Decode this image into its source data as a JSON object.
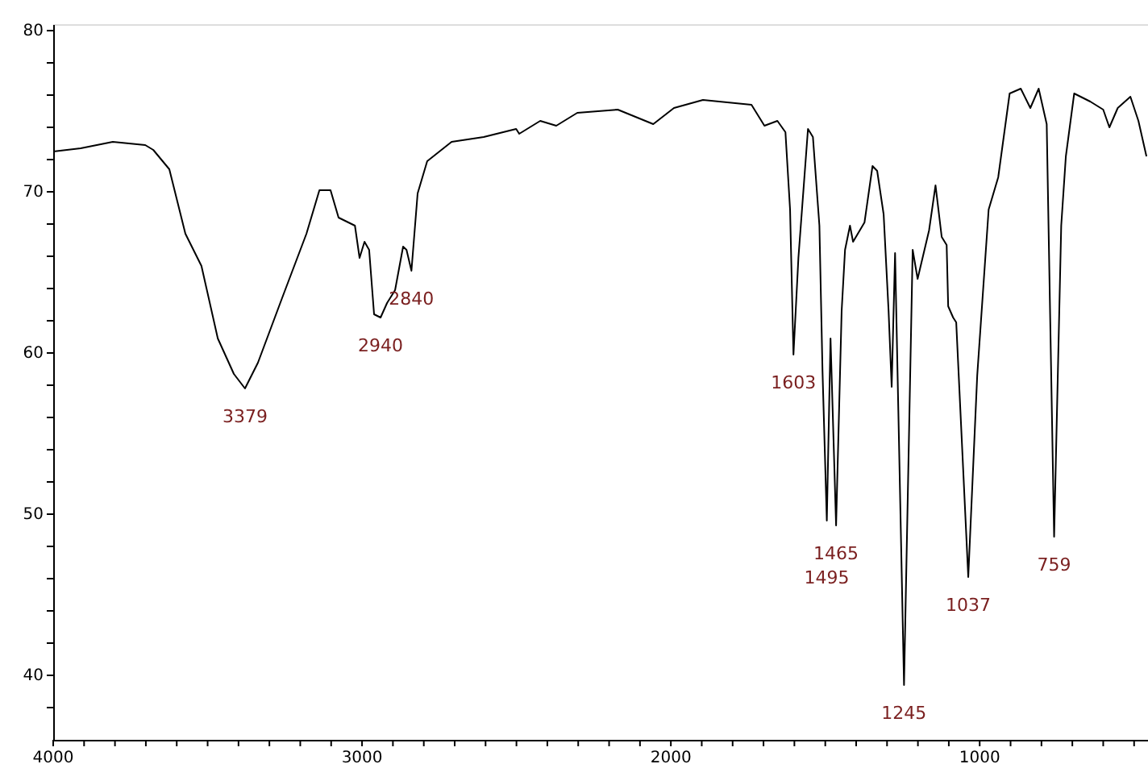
{
  "chart_data": {
    "type": "line",
    "x": [
      4000,
      3911,
      3807,
      3702,
      3676,
      3624,
      3572,
      3520,
      3467,
      3415,
      3379,
      3337,
      3259,
      3180,
      3138,
      3102,
      3076,
      3023,
      3008,
      2992,
      2977,
      2961,
      2940,
      2919,
      2893,
      2867,
      2856,
      2840,
      2820,
      2789,
      2710,
      2606,
      2501,
      2491,
      2423,
      2371,
      2303,
      2172,
      2057,
      1990,
      1896,
      1739,
      1697,
      1655,
      1629,
      1614,
      1603,
      1587,
      1556,
      1540,
      1519,
      1509,
      1495,
      1483,
      1465,
      1447,
      1436,
      1420,
      1410,
      1373,
      1347,
      1332,
      1311,
      1295,
      1285,
      1274,
      1245,
      1217,
      1201,
      1164,
      1143,
      1123,
      1107,
      1102,
      1086,
      1076,
      1037,
      1008,
      971,
      940,
      903,
      867,
      836,
      809,
      783,
      759,
      736,
      721,
      694,
      642,
      600,
      580,
      553,
      512,
      486,
      460
    ],
    "series": [
      {
        "color": "#000000",
        "values": [
          72.5,
          72.7,
          73.1,
          72.9,
          72.6,
          71.4,
          67.4,
          65.4,
          60.9,
          58.7,
          57.8,
          59.4,
          63.4,
          67.4,
          70.1,
          70.1,
          68.4,
          67.9,
          65.9,
          66.9,
          66.4,
          62.4,
          62.2,
          63.1,
          63.9,
          66.6,
          66.4,
          65.1,
          69.9,
          71.9,
          73.1,
          73.4,
          73.9,
          73.6,
          74.4,
          74.1,
          74.9,
          75.1,
          74.2,
          75.2,
          75.7,
          75.4,
          74.1,
          74.4,
          73.7,
          68.9,
          59.9,
          65.9,
          73.9,
          73.4,
          67.9,
          58.9,
          49.6,
          60.9,
          49.3,
          62.6,
          66.4,
          67.9,
          66.9,
          68.1,
          71.6,
          71.3,
          68.6,
          62.6,
          57.9,
          66.2,
          39.4,
          66.4,
          64.6,
          67.6,
          70.4,
          67.2,
          66.7,
          62.9,
          62.2,
          61.9,
          46.1,
          58.6,
          68.9,
          70.9,
          76.1,
          76.4,
          75.2,
          76.4,
          74.2,
          48.6,
          67.9,
          72.2,
          76.1,
          75.6,
          75.1,
          74.0,
          75.2,
          75.9,
          74.4,
          72.2
        ]
      }
    ],
    "xlim": [
      4000,
      455
    ],
    "ylim": [
      36,
      80.4
    ],
    "xticks": [
      4000,
      {
        "value": 3900,
        "label": null
      },
      {
        "value": 3800,
        "label": null
      },
      {
        "value": 3700,
        "label": null
      },
      {
        "value": 3600,
        "label": null
      },
      {
        "value": 3500,
        "label": null
      },
      {
        "value": 3400,
        "label": null
      },
      {
        "value": 3300,
        "label": null
      },
      {
        "value": 3200,
        "label": null
      },
      {
        "value": 3100,
        "label": null
      },
      3000,
      {
        "value": 2900,
        "label": null
      },
      {
        "value": 2800,
        "label": null
      },
      {
        "value": 2700,
        "label": null
      },
      {
        "value": 2600,
        "label": null
      },
      {
        "value": 2500,
        "label": null
      },
      {
        "value": 2400,
        "label": null
      },
      {
        "value": 2300,
        "label": null
      },
      {
        "value": 2200,
        "label": null
      },
      {
        "value": 2100,
        "label": null
      },
      2000,
      {
        "value": 1900,
        "label": null
      },
      {
        "value": 1800,
        "label": null
      },
      {
        "value": 1700,
        "label": null
      },
      {
        "value": 1600,
        "label": null
      },
      {
        "value": 1500,
        "label": null
      },
      {
        "value": 1400,
        "label": null
      },
      {
        "value": 1300,
        "label": null
      },
      {
        "value": 1200,
        "label": null
      },
      {
        "value": 1100,
        "label": null
      },
      1000,
      {
        "value": 900,
        "label": null
      },
      {
        "value": 800,
        "label": null
      },
      {
        "value": 700,
        "label": null
      },
      {
        "value": 600,
        "label": null
      },
      {
        "value": 500,
        "label": null
      }
    ],
    "yticks": [
      {
        "value": 38,
        "label": null
      },
      40,
      {
        "value": 42,
        "label": null
      },
      {
        "value": 44,
        "label": null
      },
      {
        "value": 46,
        "label": null
      },
      {
        "value": 48,
        "label": null
      },
      50,
      {
        "value": 52,
        "label": null
      },
      {
        "value": 54,
        "label": null
      },
      {
        "value": 56,
        "label": null
      },
      {
        "value": 58,
        "label": null
      },
      60,
      {
        "value": 62,
        "label": null
      },
      {
        "value": 64,
        "label": null
      },
      {
        "value": 66,
        "label": null
      },
      {
        "value": 68,
        "label": null
      },
      70,
      {
        "value": 72,
        "label": null
      },
      {
        "value": 74,
        "label": null
      },
      {
        "value": 76,
        "label": null
      },
      {
        "value": 78,
        "label": null
      },
      80
    ],
    "annotations": [
      {
        "text": "3379",
        "x": 3379,
        "y": 57.8
      },
      {
        "text": "2940",
        "x": 2940,
        "y": 62.2
      },
      {
        "text": "2840",
        "x": 2840,
        "y": 65.1
      },
      {
        "text": "1603",
        "x": 1603,
        "y": 59.9
      },
      {
        "text": "1495",
        "x": 1495,
        "y": 49.6
      },
      {
        "text": "1465",
        "x": 1465,
        "y": 49.3
      },
      {
        "text": "1245",
        "x": 1245,
        "y": 39.4
      },
      {
        "text": "1037",
        "x": 1037,
        "y": 46.1
      },
      {
        "text": "759",
        "x": 759,
        "y": 48.6
      }
    ]
  }
}
